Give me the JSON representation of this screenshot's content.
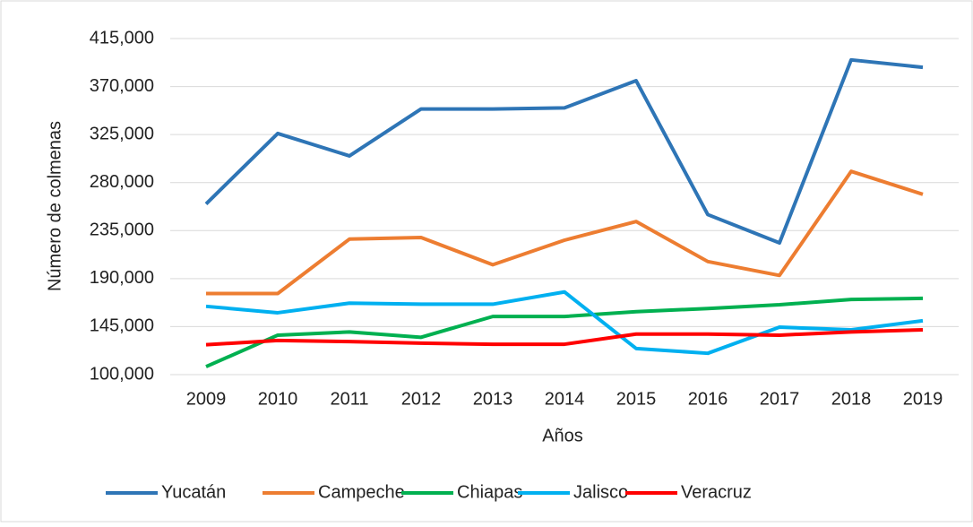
{
  "chart_data": {
    "type": "line",
    "x_label": "Años",
    "y_label": "Número de colmenas",
    "categories": [
      "2009",
      "2010",
      "2011",
      "2012",
      "2013",
      "2014",
      "2015",
      "2016",
      "2017",
      "2018",
      "2019"
    ],
    "series": [
      {
        "name": "Yucatán",
        "color": "#2e75b6",
        "values": [
          260000,
          326000,
          305000,
          349000,
          349000,
          350000,
          375500,
          250000,
          223500,
          395000,
          388000
        ]
      },
      {
        "name": "Campeche",
        "color": "#ed7d31",
        "values": [
          176000,
          176000,
          227000,
          228500,
          203000,
          226000,
          243500,
          206000,
          193000,
          290500,
          269000
        ]
      },
      {
        "name": "Chiapas",
        "color": "#00b050",
        "values": [
          107500,
          137000,
          140000,
          135000,
          154500,
          154500,
          159000,
          162000,
          165500,
          170500,
          171500
        ]
      },
      {
        "name": "Jalisco",
        "color": "#00b0f0",
        "values": [
          164000,
          158000,
          167000,
          166000,
          166000,
          177500,
          124500,
          120000,
          144500,
          142000,
          150500
        ]
      },
      {
        "name": "Veracruz",
        "color": "#ff0000",
        "values": [
          128000,
          132000,
          131000,
          129500,
          128500,
          128500,
          138000,
          138000,
          137000,
          140000,
          142000
        ]
      }
    ],
    "ylim": [
      100000,
      415000
    ],
    "yticks": [
      {
        "value": 100000,
        "label": "100,000"
      },
      {
        "value": 145000,
        "label": "145,000"
      },
      {
        "value": 190000,
        "label": "190,000"
      },
      {
        "value": 235000,
        "label": "235,000"
      },
      {
        "value": 280000,
        "label": "280,000"
      },
      {
        "value": 325000,
        "label": "325,000"
      },
      {
        "value": 370000,
        "label": "370,000"
      },
      {
        "value": 415000,
        "label": "415,000"
      }
    ],
    "grid": true,
    "legend": "bottom"
  }
}
